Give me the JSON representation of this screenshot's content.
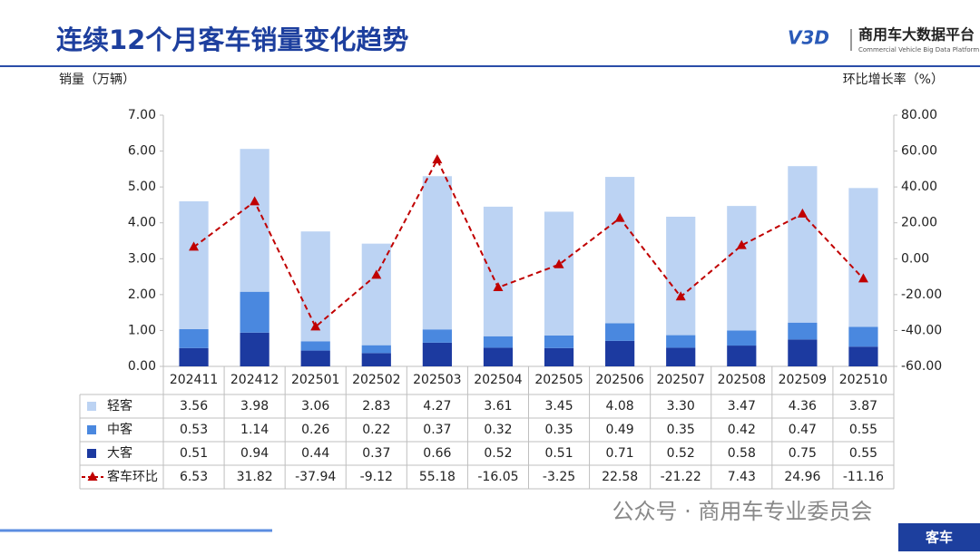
{
  "header": {
    "logo_mark": "V3D",
    "logo_title": "商用车大数据平台",
    "logo_subtitle": "Commercial Vehicle Big Data Platform"
  },
  "chart_data": {
    "type": "bar",
    "title": "连续12个月客车销量变化趋势",
    "y_label": "销量（万辆）",
    "y2_label": "环比增长率（%）",
    "categories": [
      "202411",
      "202412",
      "202501",
      "202502",
      "202503",
      "202504",
      "202505",
      "202506",
      "202507",
      "202508",
      "202509",
      "202510"
    ],
    "series": [
      {
        "name": "轻客",
        "color": "#bcd3f3",
        "values": [
          3.56,
          3.98,
          3.06,
          2.83,
          4.27,
          3.61,
          3.45,
          4.08,
          3.3,
          3.47,
          4.36,
          3.87
        ],
        "value_labels": [
          "3.56",
          "3.98",
          "3.06",
          "2.83",
          "4.27",
          "3.61",
          "3.45",
          "4.08",
          "3.30",
          "3.47",
          "4.36",
          "3.87"
        ]
      },
      {
        "name": "中客",
        "color": "#4a88df",
        "values": [
          0.53,
          1.14,
          0.26,
          0.22,
          0.37,
          0.32,
          0.35,
          0.49,
          0.35,
          0.42,
          0.47,
          0.55
        ],
        "value_labels": [
          "0.53",
          "1.14",
          "0.26",
          "0.22",
          "0.37",
          "0.32",
          "0.35",
          "0.49",
          "0.35",
          "0.42",
          "0.47",
          "0.55"
        ]
      },
      {
        "name": "大客",
        "color": "#1c3aa0",
        "values": [
          0.51,
          0.94,
          0.44,
          0.37,
          0.66,
          0.52,
          0.51,
          0.71,
          0.52,
          0.58,
          0.75,
          0.55
        ],
        "value_labels": [
          "0.51",
          "0.94",
          "0.44",
          "0.37",
          "0.66",
          "0.52",
          "0.51",
          "0.71",
          "0.52",
          "0.58",
          "0.75",
          "0.55"
        ]
      },
      {
        "name": "客车环比",
        "type": "line",
        "axis": "y2",
        "color": "#c00000",
        "values": [
          6.53,
          31.82,
          -37.94,
          -9.12,
          55.18,
          -16.05,
          -3.25,
          22.58,
          -21.22,
          7.43,
          24.96,
          -11.16
        ],
        "value_labels": [
          "6.53",
          "31.82",
          "-37.94",
          "-9.12",
          "55.18",
          "-16.05",
          "-3.25",
          "22.58",
          "-21.22",
          "7.43",
          "24.96",
          "-11.16"
        ]
      }
    ],
    "ylim": [
      0,
      7
    ],
    "yticks": [
      {
        "value": 0,
        "label": "0.00"
      },
      {
        "value": 1,
        "label": "1.00"
      },
      {
        "value": 2,
        "label": "2.00"
      },
      {
        "value": 3,
        "label": "3.00"
      },
      {
        "value": 4,
        "label": "4.00"
      },
      {
        "value": 5,
        "label": "5.00"
      },
      {
        "value": 6,
        "label": "6.00"
      },
      {
        "value": 7,
        "label": "7.00"
      }
    ],
    "y2lim": [
      -60,
      80
    ],
    "y2ticks": [
      {
        "value": -60,
        "label": "-60.00"
      },
      {
        "value": -40,
        "label": "-40.00"
      },
      {
        "value": -20,
        "label": "-20.00"
      },
      {
        "value": 0,
        "label": "0.00"
      },
      {
        "value": 20,
        "label": "20.00"
      },
      {
        "value": 40,
        "label": "40.00"
      },
      {
        "value": 60,
        "label": "60.00"
      },
      {
        "value": 80,
        "label": "80.00"
      }
    ]
  },
  "footer": {
    "watermark": "公众号 · 商用车专业委员会",
    "tag": "客车"
  }
}
